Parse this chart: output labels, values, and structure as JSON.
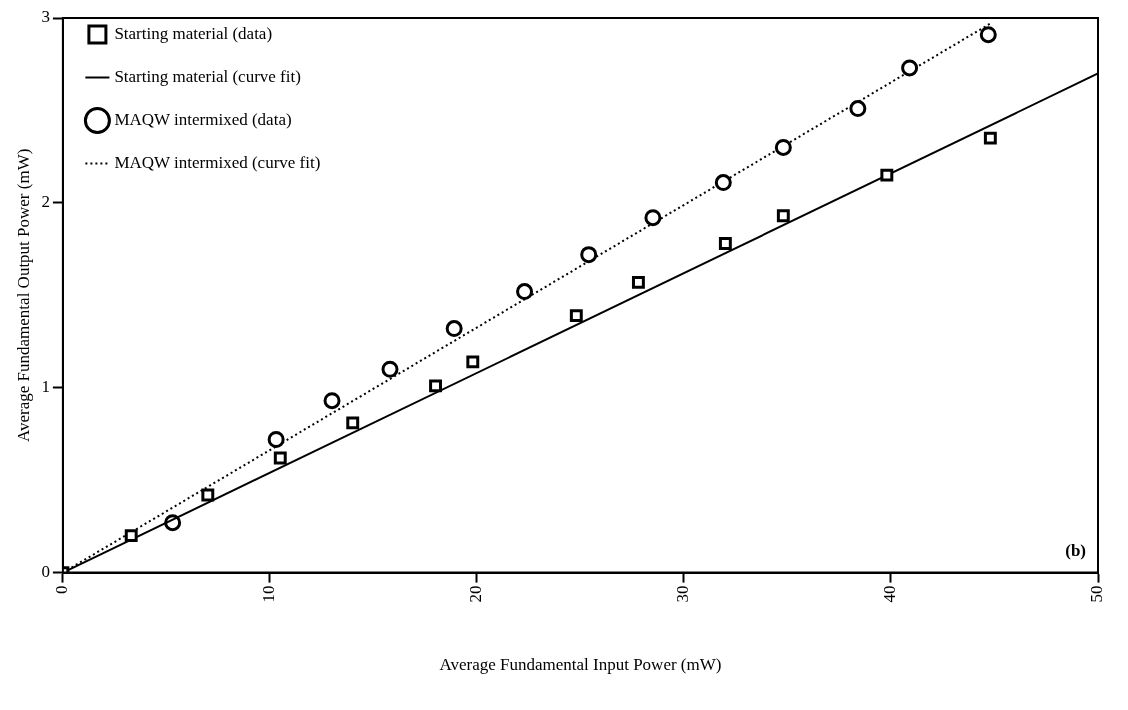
{
  "chart_data": {
    "type": "scatter",
    "xlabel": "Average Fundamental Input Power (mW)",
    "ylabel": "Average Fundamental Output Power (mW)",
    "xlim": [
      0,
      50
    ],
    "xticks": [
      0,
      10,
      20,
      30,
      40,
      50
    ],
    "ylim": [
      0,
      3
    ],
    "yticks": [
      0,
      1,
      2,
      3
    ],
    "grid": false,
    "legend": "top left",
    "annotations": [
      "(b)"
    ],
    "series": [
      {
        "name": "Starting material (data)",
        "type": "scatter",
        "marker": "square",
        "color": "#000000",
        "x": [
          0,
          3.3,
          7,
          10.5,
          14,
          18,
          19.8,
          24.8,
          27.8,
          32,
          34.8,
          39.8,
          44.8
        ],
        "values": [
          0,
          0.2,
          0.42,
          0.62,
          0.81,
          1.01,
          1.14,
          1.39,
          1.57,
          1.78,
          1.93,
          2.15,
          2.35
        ]
      },
      {
        "name": "Starting material (curve fit)",
        "type": "line",
        "marker": "none",
        "line_style": "solid",
        "color": "#000000",
        "x": [
          0,
          50
        ],
        "values": [
          0,
          2.7
        ]
      },
      {
        "name": "MAQW intermixed (data)",
        "type": "scatter",
        "marker": "circle",
        "color": "#000000",
        "x": [
          5.3,
          10.3,
          13,
          15.8,
          18.9,
          22.3,
          25.4,
          28.5,
          31.9,
          34.8,
          38.4,
          40.9,
          44.7
        ],
        "values": [
          0.27,
          0.72,
          0.93,
          1.1,
          1.32,
          1.52,
          1.72,
          1.92,
          2.11,
          2.3,
          2.51,
          2.73,
          2.91
        ]
      },
      {
        "name": "MAQW intermixed (curve fit)",
        "type": "line",
        "marker": "none",
        "line_style": "dotted",
        "color": "#000000",
        "x": [
          0,
          44.8
        ],
        "values": [
          0,
          2.97
        ]
      }
    ]
  }
}
